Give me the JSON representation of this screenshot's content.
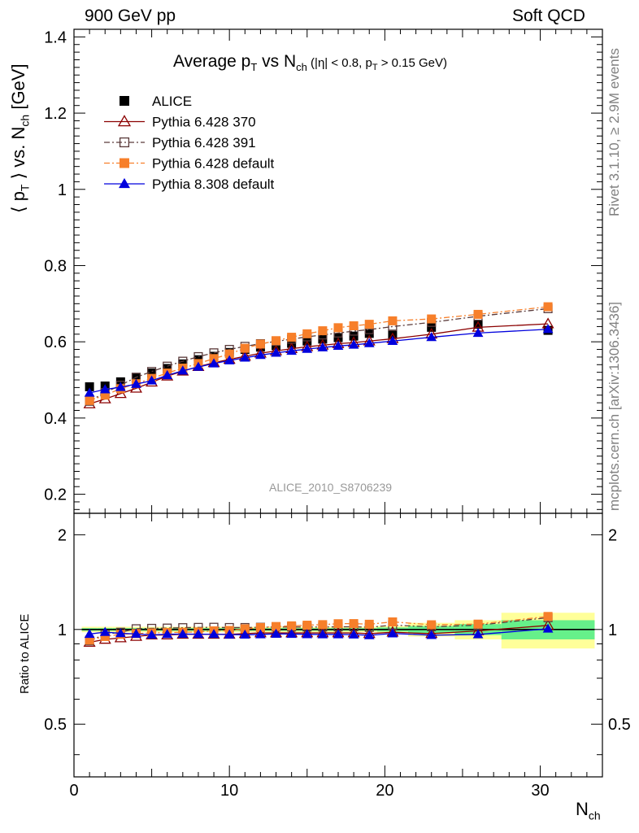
{
  "header": {
    "left": "900 GeV pp",
    "right": "Soft QCD"
  },
  "side_labels": {
    "rivet": "Rivet 3.1.10, ≥ 2.9M events",
    "mcplots": "mcplots.cern.ch [arXiv:1306.3436]"
  },
  "watermark": "ALICE_2010_S8706239",
  "chart_data": [
    {
      "type": "scatter",
      "title": "Average p_T vs N_ch (|η| < 0.8, p_T > 0.15 GeV)",
      "title_parts": {
        "a": "Average p",
        "a_sub": "T",
        "b": " vs N",
        "b_sub": "ch",
        "c": " (|η| < 0.8, p",
        "c_sub": "T",
        "d": " > 0.15 GeV)"
      },
      "ylabel_parts": {
        "a": "⟨ p",
        "a_sub": "T",
        "b": " ⟩ vs. N",
        "b_sub": "ch",
        "c": " [GeV]"
      },
      "xlim": [
        0,
        34
      ],
      "ylim": [
        0.15,
        1.42
      ],
      "yticks": [
        0.2,
        0.4,
        0.6,
        0.8,
        1,
        1.2,
        1.4
      ],
      "ytick_labels": [
        "0.2",
        "0.4",
        "0.6",
        "0.8",
        "1",
        "1.2",
        "1.4"
      ],
      "legend_position": "top-left",
      "series": [
        {
          "name": "ALICE",
          "color": "#000000",
          "marker": "square-filled",
          "x": [
            1,
            2,
            3,
            4,
            5,
            6,
            7,
            8,
            9,
            10,
            11,
            12,
            13,
            14,
            15,
            16,
            17,
            18,
            19,
            20.5,
            23,
            26,
            30.5
          ],
          "y": [
            0.482,
            0.484,
            0.495,
            0.505,
            0.518,
            0.53,
            0.542,
            0.553,
            0.562,
            0.572,
            0.58,
            0.586,
            0.59,
            0.596,
            0.602,
            0.607,
            0.611,
            0.615,
            0.622,
            0.62,
            0.638,
            0.646,
            0.63
          ]
        },
        {
          "name": "Pythia 6.428 370",
          "color": "#8b0000",
          "marker": "triangle-open",
          "x": [
            1,
            2,
            3,
            4,
            5,
            6,
            7,
            8,
            9,
            10,
            11,
            12,
            13,
            14,
            15,
            16,
            17,
            18,
            19,
            20.5,
            23,
            26,
            30.5
          ],
          "y": [
            0.437,
            0.45,
            0.464,
            0.478,
            0.494,
            0.51,
            0.523,
            0.535,
            0.545,
            0.554,
            0.562,
            0.57,
            0.576,
            0.582,
            0.587,
            0.591,
            0.595,
            0.598,
            0.602,
            0.608,
            0.62,
            0.638,
            0.647
          ]
        },
        {
          "name": "Pythia 6.428 391",
          "color": "#5a3a3a",
          "marker": "square-open",
          "x": [
            1,
            2,
            3,
            4,
            5,
            6,
            7,
            8,
            9,
            10,
            11,
            12,
            13,
            14,
            15,
            16,
            17,
            18,
            19,
            20.5,
            23,
            26,
            30.5
          ],
          "y": [
            0.444,
            0.467,
            0.486,
            0.507,
            0.522,
            0.536,
            0.549,
            0.561,
            0.571,
            0.58,
            0.588,
            0.595,
            0.601,
            0.607,
            0.613,
            0.618,
            0.623,
            0.628,
            0.632,
            0.64,
            0.651,
            0.667,
            0.687
          ]
        },
        {
          "name": "Pythia 6.428 default",
          "color": "#f77f2a",
          "marker": "square-filled",
          "x": [
            1,
            2,
            3,
            4,
            5,
            6,
            7,
            8,
            9,
            10,
            11,
            12,
            13,
            14,
            15,
            16,
            17,
            18,
            19,
            20.5,
            23,
            26,
            30.5
          ],
          "y": [
            0.446,
            0.46,
            0.477,
            0.49,
            0.504,
            0.518,
            0.531,
            0.543,
            0.556,
            0.568,
            0.583,
            0.594,
            0.603,
            0.612,
            0.621,
            0.629,
            0.637,
            0.642,
            0.646,
            0.655,
            0.66,
            0.672,
            0.692
          ]
        },
        {
          "name": "Pythia 8.308 default",
          "color": "#0000dd",
          "marker": "triangle-filled",
          "x": [
            1,
            2,
            3,
            4,
            5,
            6,
            7,
            8,
            9,
            10,
            11,
            12,
            13,
            14,
            15,
            16,
            17,
            18,
            19,
            20.5,
            23,
            26,
            30.5
          ],
          "y": [
            0.466,
            0.475,
            0.481,
            0.489,
            0.498,
            0.512,
            0.524,
            0.534,
            0.543,
            0.551,
            0.558,
            0.565,
            0.571,
            0.576,
            0.581,
            0.585,
            0.589,
            0.592,
            0.596,
            0.602,
            0.612,
            0.623,
            0.633
          ]
        }
      ]
    },
    {
      "type": "scatter",
      "ylabel": "Ratio to ALICE",
      "xlabel": "N_ch",
      "xlabel_parts": {
        "a": "N",
        "a_sub": "ch"
      },
      "xlim": [
        0,
        34
      ],
      "ylim": [
        0.34,
        2.34
      ],
      "xticks": [
        0,
        10,
        20,
        30
      ],
      "xtick_labels": [
        "0",
        "10",
        "20",
        "30"
      ],
      "yticks": [
        0.5,
        1,
        2
      ],
      "ytick_labels": [
        "0.5",
        "1",
        "2"
      ],
      "reference_band": {
        "inner_color": "#66f08a",
        "outer_color": "#ffff99",
        "x_edges": [
          0.5,
          1.5,
          2.5,
          3.5,
          4.5,
          5.5,
          6.5,
          7.5,
          8.5,
          9.5,
          10.5,
          11.5,
          12.5,
          13.5,
          14.5,
          15.5,
          16.5,
          17.5,
          18.5,
          19.5,
          21.5,
          24.5,
          27.5,
          33.5
        ],
        "inner_half_width": [
          0.01,
          0.01,
          0.01,
          0.01,
          0.01,
          0.01,
          0.01,
          0.01,
          0.01,
          0.01,
          0.01,
          0.01,
          0.01,
          0.01,
          0.01,
          0.01,
          0.01,
          0.01,
          0.01,
          0.015,
          0.025,
          0.04,
          0.07
        ],
        "outer_half_width": [
          0.02,
          0.02,
          0.02,
          0.02,
          0.02,
          0.02,
          0.02,
          0.02,
          0.02,
          0.02,
          0.02,
          0.02,
          0.02,
          0.02,
          0.02,
          0.02,
          0.02,
          0.02,
          0.02,
          0.025,
          0.05,
          0.07,
          0.13
        ]
      },
      "series": [
        {
          "name": "Pythia 6.428 370",
          "color": "#8b0000",
          "marker": "triangle-open",
          "x": [
            1,
            2,
            3,
            4,
            5,
            6,
            7,
            8,
            9,
            10,
            11,
            12,
            13,
            14,
            15,
            16,
            17,
            18,
            19,
            20.5,
            23,
            26,
            30.5
          ],
          "y": [
            0.91,
            0.93,
            0.94,
            0.95,
            0.96,
            0.96,
            0.965,
            0.965,
            0.965,
            0.965,
            0.97,
            0.975,
            0.975,
            0.975,
            0.975,
            0.975,
            0.975,
            0.975,
            0.97,
            0.98,
            0.97,
            0.99,
            1.03
          ]
        },
        {
          "name": "Pythia 6.428 391",
          "color": "#5a3a3a",
          "marker": "square-open",
          "x": [
            1,
            2,
            3,
            4,
            5,
            6,
            7,
            8,
            9,
            10,
            11,
            12,
            13,
            14,
            15,
            16,
            17,
            18,
            19,
            20.5,
            23,
            26,
            30.5
          ],
          "y": [
            0.92,
            0.965,
            0.98,
            1.005,
            1.008,
            1.01,
            1.013,
            1.015,
            1.016,
            1.014,
            1.014,
            1.016,
            1.018,
            1.018,
            1.018,
            1.018,
            1.019,
            1.02,
            1.016,
            1.032,
            1.02,
            1.032,
            1.09
          ]
        },
        {
          "name": "Pythia 6.428 default",
          "color": "#f77f2a",
          "marker": "square-filled",
          "x": [
            1,
            2,
            3,
            4,
            5,
            6,
            7,
            8,
            9,
            10,
            11,
            12,
            13,
            14,
            15,
            16,
            17,
            18,
            19,
            20.5,
            23,
            26,
            30.5
          ],
          "y": [
            0.925,
            0.95,
            0.965,
            0.97,
            0.975,
            0.978,
            0.98,
            0.982,
            0.99,
            0.993,
            1.005,
            1.014,
            1.022,
            1.027,
            1.032,
            1.036,
            1.043,
            1.044,
            1.039,
            1.057,
            1.035,
            1.04,
            1.1
          ]
        },
        {
          "name": "Pythia 8.308 default",
          "color": "#0000dd",
          "marker": "triangle-filled",
          "x": [
            1,
            2,
            3,
            4,
            5,
            6,
            7,
            8,
            9,
            10,
            11,
            12,
            13,
            14,
            15,
            16,
            17,
            18,
            19,
            20.5,
            23,
            26,
            30.5
          ],
          "y": [
            0.967,
            0.981,
            0.972,
            0.968,
            0.961,
            0.966,
            0.967,
            0.966,
            0.966,
            0.963,
            0.962,
            0.964,
            0.968,
            0.967,
            0.965,
            0.964,
            0.964,
            0.963,
            0.958,
            0.971,
            0.959,
            0.964,
            1.005
          ]
        }
      ]
    }
  ]
}
